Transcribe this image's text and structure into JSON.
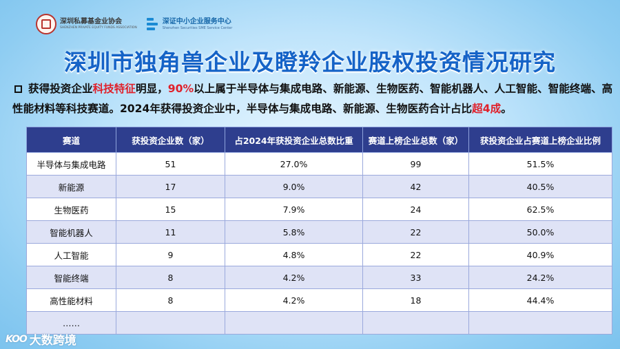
{
  "header": {
    "org1": {
      "name_cn": "深圳私募基金业协会",
      "name_en": "SHENZHEN PRIVATE EQUITY FUNDS ASSOCIATION",
      "seal_char": "SZ"
    },
    "org2": {
      "name_cn": "深证中小企业服务中心",
      "name_en": "Shenzhen Securities SME Service Center"
    }
  },
  "title": "深圳市独角兽企业及瞪羚企业股权投资情况研究",
  "bullet": {
    "p1": "获得投资企业",
    "h1": "科技特征",
    "p2": "明显，",
    "h2": "90%",
    "p3": "以上属于半导体与集成电路、新能源、生物医药、智能机器人、人工智能、智能终端、高性能材料等科技赛道。2024年获得投资企业中，半导体与集成电路、新能源、生物医药合计占比",
    "h3": "超4成",
    "p4": "。"
  },
  "table": {
    "headers": [
      "赛道",
      "获投资企业数（家）",
      "占2024年获投资企业总数比重",
      "赛道上榜企业总数（家）",
      "获投资企业占赛道上榜企业比例"
    ],
    "rows": [
      [
        "半导体与集成电路",
        "51",
        "27.0%",
        "99",
        "51.5%"
      ],
      [
        "新能源",
        "17",
        "9.0%",
        "42",
        "40.5%"
      ],
      [
        "生物医药",
        "15",
        "7.9%",
        "24",
        "62.5%"
      ],
      [
        "智能机器人",
        "11",
        "5.8%",
        "22",
        "50.0%"
      ],
      [
        "人工智能",
        "9",
        "4.8%",
        "22",
        "40.9%"
      ],
      [
        "智能终端",
        "8",
        "4.2%",
        "33",
        "24.2%"
      ],
      [
        "高性能材料",
        "8",
        "4.2%",
        "18",
        "44.4%"
      ],
      [
        "……",
        "",
        "",
        "",
        ""
      ]
    ]
  },
  "watermark": {
    "mark": "KOO",
    "text": "大数跨境"
  },
  "colors": {
    "title": "#1563c7",
    "highlight": "#e0202a",
    "table_header": "#2e3e8e",
    "row_alt": "#dfe3f6"
  }
}
